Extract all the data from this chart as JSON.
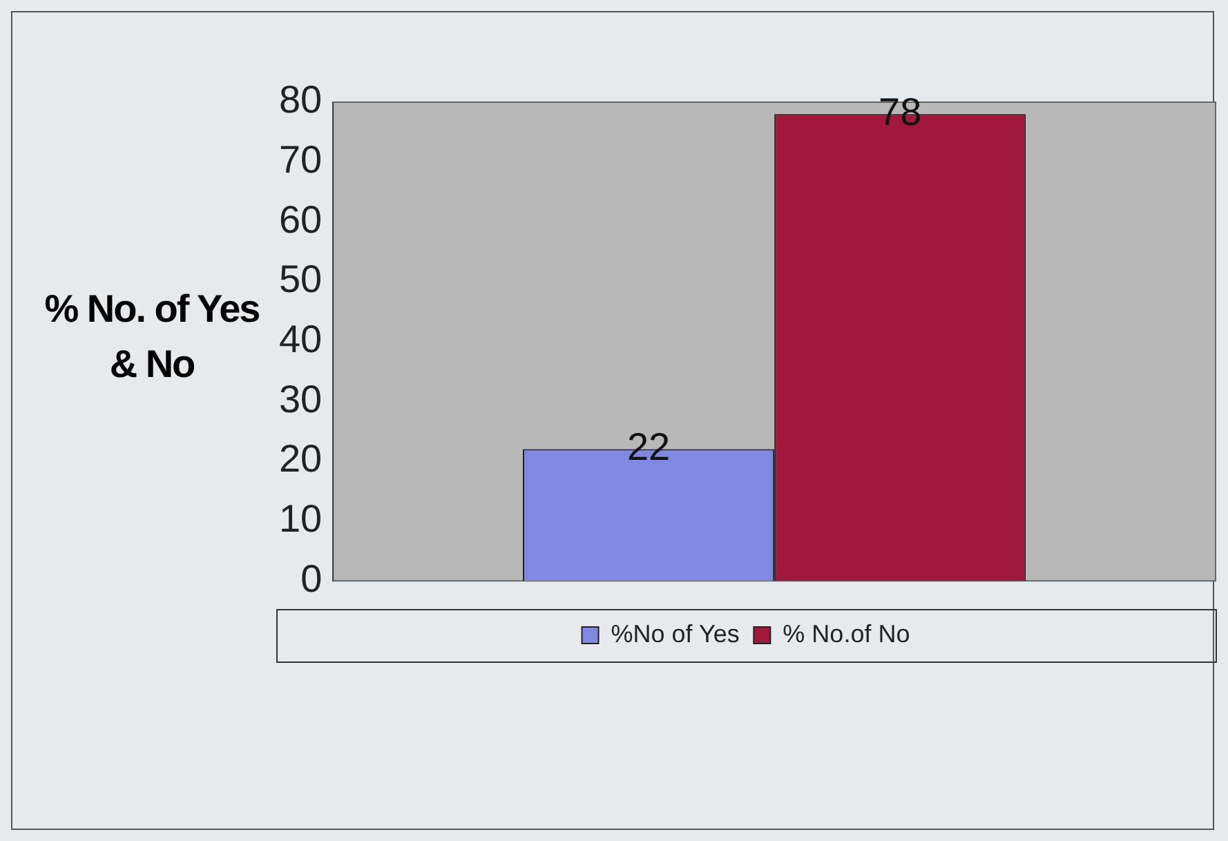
{
  "chart_data": {
    "type": "bar",
    "ylabel": "% No. of Yes & No",
    "categories": [
      null
    ],
    "series": [
      {
        "name": "%No of Yes",
        "color": "#8088e0",
        "values": [
          22
        ]
      },
      {
        "name": "% No.of No",
        "color": "#a0183c",
        "values": [
          78
        ]
      }
    ],
    "ylim": [
      0,
      80
    ],
    "yticks": [
      0,
      10,
      20,
      30,
      40,
      50,
      60,
      70,
      80
    ],
    "grid": false,
    "legend": "bottom",
    "data_labels": true
  }
}
